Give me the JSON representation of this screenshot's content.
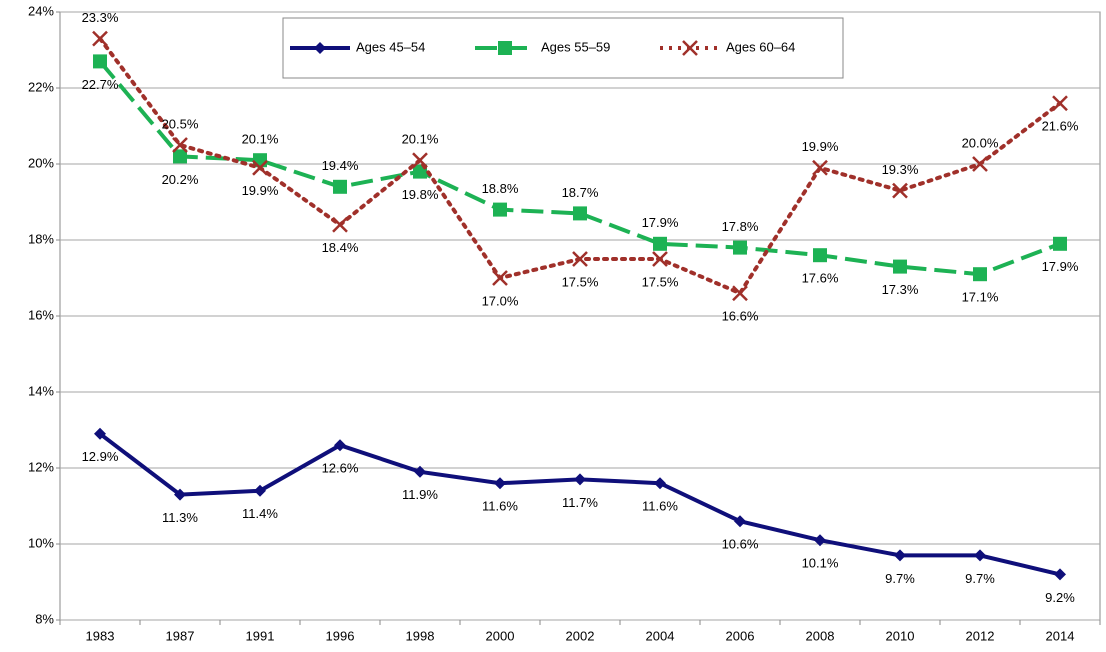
{
  "chart_data": {
    "type": "line",
    "categories": [
      "1983",
      "1987",
      "1991",
      "1996",
      "1998",
      "2000",
      "2002",
      "2004",
      "2006",
      "2008",
      "2010",
      "2012",
      "2014"
    ],
    "ylim": [
      8,
      24
    ],
    "yticks": [
      {
        "value": 8,
        "label": "8%"
      },
      {
        "value": 10,
        "label": "10%"
      },
      {
        "value": 12,
        "label": "12%"
      },
      {
        "value": 14,
        "label": "14%"
      },
      {
        "value": 16,
        "label": "16%"
      },
      {
        "value": 18,
        "label": "18%"
      },
      {
        "value": 20,
        "label": "20%"
      },
      {
        "value": 22,
        "label": "22%"
      },
      {
        "value": 24,
        "label": "24%"
      }
    ],
    "grid": true,
    "legend": "top",
    "series": [
      {
        "name": "Ages 45–54",
        "color": "#0f0f7a",
        "marker": "diamond",
        "dash": "solid",
        "values": [
          12.9,
          11.3,
          11.4,
          12.6,
          11.9,
          11.6,
          11.7,
          11.6,
          10.6,
          10.1,
          9.7,
          9.7,
          9.2
        ],
        "value_labels": [
          "12.9%",
          "11.3%",
          "11.4%",
          "12.6%",
          "11.9%",
          "11.6%",
          "11.7%",
          "11.6%",
          "10.6%",
          "10.1%",
          "9.7%",
          "9.7%",
          "9.2%"
        ]
      },
      {
        "name": "Ages 55–59",
        "color": "#1db254",
        "marker": "square",
        "dash": "dashed",
        "values": [
          22.7,
          20.2,
          20.1,
          19.4,
          19.8,
          18.8,
          18.7,
          17.9,
          17.8,
          17.6,
          17.3,
          17.1,
          17.9
        ],
        "value_labels": [
          "22.7%",
          "20.2%",
          "20.1%",
          "19.4%",
          "19.8%",
          "18.8%",
          "18.7%",
          "17.9%",
          "17.8%",
          "17.6%",
          "17.3%",
          "17.1%",
          "17.9%"
        ]
      },
      {
        "name": "Ages 60–64",
        "color": "#a0302a",
        "marker": "x",
        "dash": "dotted",
        "values": [
          23.3,
          20.5,
          19.9,
          18.4,
          20.1,
          17.0,
          17.5,
          17.5,
          16.6,
          19.9,
          19.3,
          20.0,
          21.6
        ],
        "value_labels": [
          "23.3%",
          "20.5%",
          "19.9%",
          "18.4%",
          "20.1%",
          "17.0%",
          "17.5%",
          "17.5%",
          "16.6%",
          "19.9%",
          "19.3%",
          "20.0%",
          "21.6%"
        ]
      }
    ]
  }
}
